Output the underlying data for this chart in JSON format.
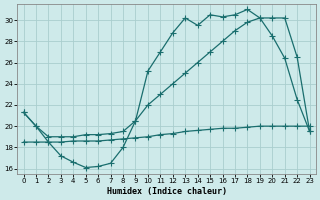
{
  "xlabel": "Humidex (Indice chaleur)",
  "background_color": "#ceeaea",
  "grid_color": "#aacece",
  "line_color": "#1a6e6e",
  "xlim": [
    -0.5,
    23.5
  ],
  "ylim": [
    15.5,
    31.5
  ],
  "xticks": [
    0,
    1,
    2,
    3,
    4,
    5,
    6,
    7,
    8,
    9,
    10,
    11,
    12,
    13,
    14,
    15,
    16,
    17,
    18,
    19,
    20,
    21,
    22,
    23
  ],
  "yticks": [
    16,
    18,
    20,
    22,
    24,
    26,
    28,
    30
  ],
  "series1_x": [
    0,
    1,
    2,
    3,
    4,
    5,
    6,
    7,
    8,
    9,
    10,
    11,
    12,
    13,
    14,
    15,
    16,
    17,
    18,
    19,
    20,
    21,
    22,
    23
  ],
  "series1_y": [
    21.3,
    20.0,
    18.5,
    17.2,
    16.6,
    16.1,
    16.2,
    16.5,
    18.0,
    20.5,
    25.2,
    27.0,
    28.8,
    30.2,
    29.5,
    30.5,
    30.3,
    30.5,
    31.0,
    30.2,
    28.5,
    26.4,
    22.5,
    19.5
  ],
  "series2_x": [
    0,
    1,
    2,
    3,
    4,
    5,
    6,
    7,
    8,
    9,
    10,
    11,
    12,
    13,
    14,
    15,
    16,
    17,
    18,
    19,
    20,
    21,
    22,
    23
  ],
  "series2_y": [
    21.3,
    20.0,
    19.0,
    19.0,
    19.0,
    19.2,
    19.2,
    19.3,
    19.5,
    20.5,
    22.0,
    23.0,
    24.0,
    25.0,
    26.0,
    27.0,
    28.0,
    29.0,
    29.8,
    30.2,
    30.2,
    30.2,
    26.5,
    19.5
  ],
  "series3_x": [
    0,
    1,
    2,
    3,
    4,
    5,
    6,
    7,
    8,
    9,
    10,
    11,
    12,
    13,
    14,
    15,
    16,
    17,
    18,
    19,
    20,
    21,
    22,
    23
  ],
  "series3_y": [
    18.5,
    18.5,
    18.5,
    18.5,
    18.6,
    18.6,
    18.6,
    18.7,
    18.8,
    18.9,
    19.0,
    19.2,
    19.3,
    19.5,
    19.6,
    19.7,
    19.8,
    19.8,
    19.9,
    20.0,
    20.0,
    20.0,
    20.0,
    20.0
  ]
}
